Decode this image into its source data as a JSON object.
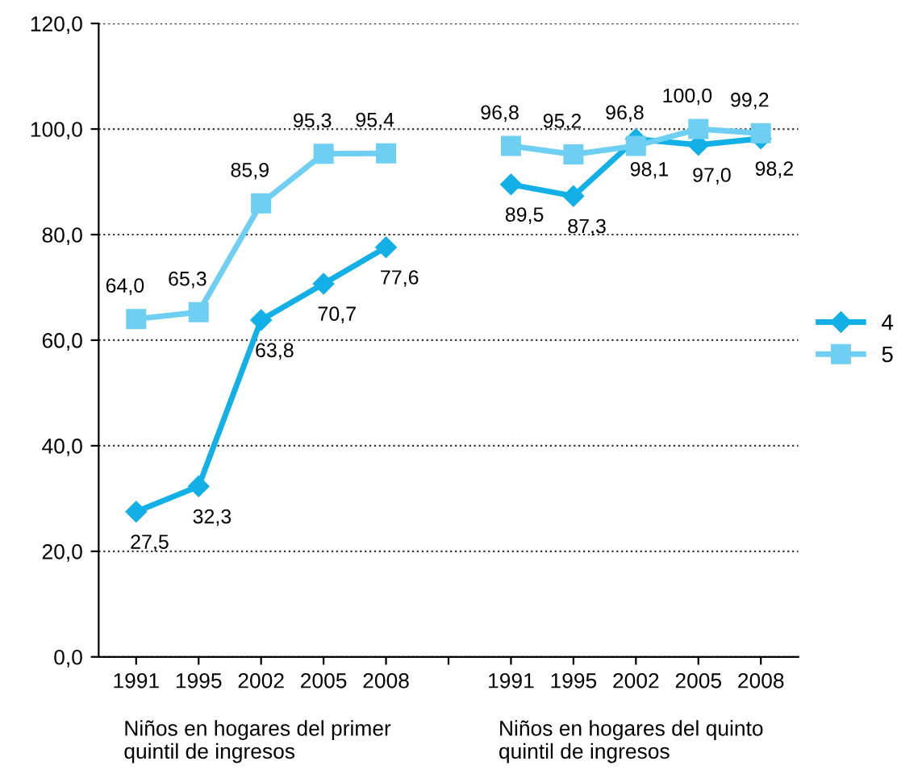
{
  "chart_data": {
    "type": "line",
    "categories": [
      "1991",
      "1995",
      "2002",
      "2005",
      "2008",
      null,
      "1991",
      "1995",
      "2002",
      "2005",
      "2008"
    ],
    "series": [
      {
        "name": "4",
        "color": "#12b0e6",
        "marker": "diamond",
        "values": [
          27.5,
          32.3,
          63.8,
          70.7,
          77.6,
          null,
          89.5,
          87.3,
          98.1,
          97.0,
          98.2
        ],
        "value_labels": [
          "27,5",
          "32,3",
          "63,8",
          "70,7",
          "77,6",
          null,
          "89,5",
          "87,3",
          "98,1",
          "97,0",
          "98,2"
        ]
      },
      {
        "name": "5",
        "color": "#6fcff3",
        "marker": "square",
        "values": [
          64.0,
          65.3,
          85.9,
          95.3,
          95.4,
          null,
          96.8,
          95.2,
          96.8,
          100.0,
          99.2
        ],
        "value_labels": [
          "64,0",
          "65,3",
          "85,9",
          "95,3",
          "95,4",
          null,
          "96,8",
          "95,2",
          "96,8",
          "100,0",
          "99,2"
        ]
      }
    ],
    "ylim": [
      0,
      120
    ],
    "yticks": [
      {
        "value": 0,
        "label": "0,0"
      },
      {
        "value": 20,
        "label": "20,0"
      },
      {
        "value": 40,
        "label": "40,0"
      },
      {
        "value": 60,
        "label": "60,0"
      },
      {
        "value": 80,
        "label": "80,0"
      },
      {
        "value": 100,
        "label": "100,0"
      },
      {
        "value": 120,
        "label": "120,0"
      }
    ],
    "grid": "y",
    "legend": "right",
    "line_style": "solid",
    "annotations": [
      "Niños en hogares del primer\nquintil de ingresos",
      "Niños en hogares del quinto\nquintil de ingresos"
    ]
  }
}
